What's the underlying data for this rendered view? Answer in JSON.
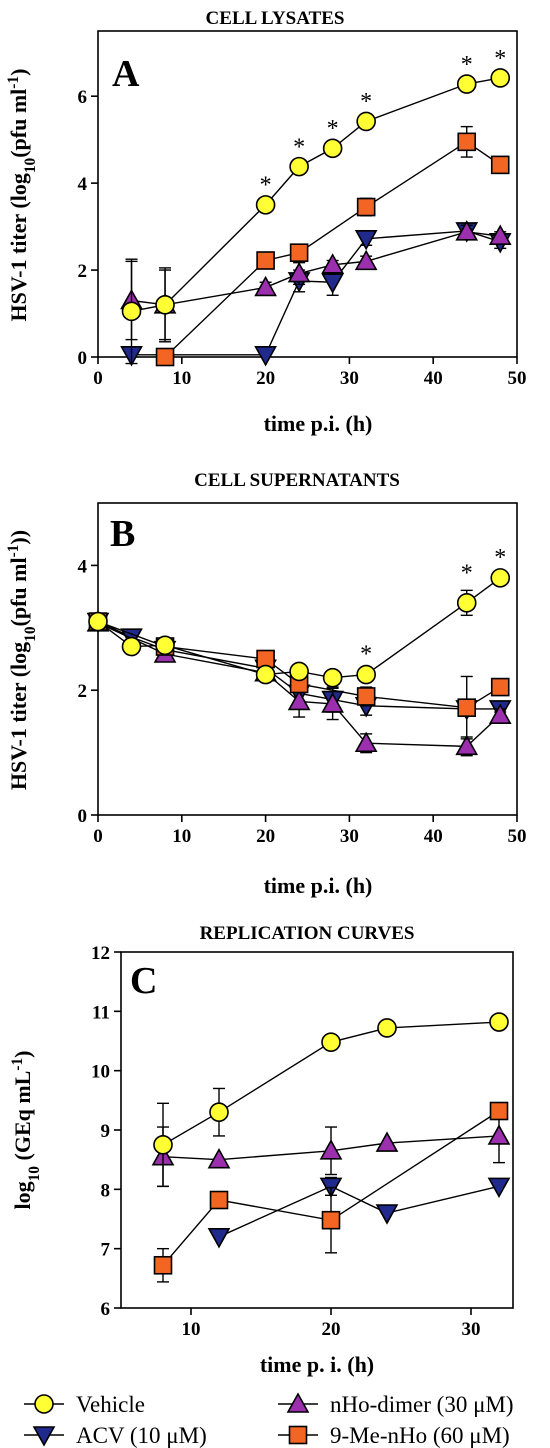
{
  "colors": {
    "vehicle": "#ffff33",
    "acv": "#1f2a8c",
    "dimer": "#9b2fae",
    "methyl": "#f26522"
  },
  "legend": {
    "items": [
      {
        "key": "vehicle",
        "label": "Vehicle",
        "marker": "circle"
      },
      {
        "key": "dimer",
        "label": "nHo-dimer (30 μM)",
        "marker": "triangle-up"
      },
      {
        "key": "acv",
        "label": "ACV (10 μM)",
        "marker": "triangle-down"
      },
      {
        "key": "methyl",
        "label": "9-Me-nHo (60 μM)",
        "marker": "square"
      }
    ]
  },
  "chart_data": [
    {
      "panel": "A",
      "type": "line",
      "title": "CELL LYSATES",
      "xlabel": "time p.i. (h)",
      "ylabel": "HSV-1 titer (log₁₀(pfu ml⁻¹)",
      "xlim": [
        0,
        50
      ],
      "ylim": [
        0,
        7.5
      ],
      "xticks": [
        0,
        10,
        20,
        30,
        40,
        50
      ],
      "yticks": [
        0,
        2,
        4,
        6
      ],
      "asterisks": [
        20,
        24,
        28,
        32,
        44,
        48
      ],
      "series": [
        {
          "key": "acv",
          "name": "ACV (10 μM)",
          "x": [
            4,
            20,
            24,
            28,
            32,
            44,
            48
          ],
          "y": [
            0.05,
            0.05,
            1.75,
            1.72,
            2.72,
            2.9,
            2.65
          ],
          "err": [
            0,
            0,
            0.25,
            0.3,
            0.15,
            0.15,
            0.15
          ]
        },
        {
          "key": "dimer",
          "name": "nHo-dimer (30 μM)",
          "x": [
            4,
            8,
            20,
            24,
            28,
            32,
            44,
            48
          ],
          "y": [
            1.3,
            1.2,
            1.6,
            1.92,
            2.12,
            2.2,
            2.88,
            2.78
          ],
          "err": [
            0.9,
            0.8,
            0.12,
            0.25,
            0.1,
            0.12,
            0.15,
            0.1
          ]
        },
        {
          "key": "methyl",
          "name": "9-Me-nHo (60 μM)",
          "x": [
            8,
            20,
            24,
            32,
            44,
            48
          ],
          "y": [
            0.0,
            2.22,
            2.4,
            3.45,
            4.95,
            4.42
          ],
          "err": [
            0,
            0.05,
            0.08,
            0.2,
            0.35,
            0.08
          ]
        },
        {
          "key": "vehicle",
          "name": "Vehicle",
          "x": [
            4,
            8,
            20,
            24,
            28,
            32,
            44,
            48
          ],
          "y": [
            1.05,
            1.2,
            3.5,
            4.38,
            4.8,
            5.42,
            6.28,
            6.42
          ],
          "err": [
            1.2,
            0.85,
            0.05,
            0.05,
            0.05,
            0.05,
            0.05,
            0.05
          ]
        }
      ]
    },
    {
      "panel": "B",
      "type": "line",
      "title": "CELL SUPERNATANTS",
      "xlabel": "time p.i. (h)",
      "ylabel": "HSV-1 titer (log₁₀(pfu ml⁻¹))",
      "xlim": [
        0,
        50
      ],
      "ylim": [
        0,
        5
      ],
      "xticks": [
        0,
        10,
        20,
        30,
        40,
        50
      ],
      "yticks": [
        0,
        2,
        4
      ],
      "asterisks": [
        32,
        44,
        48
      ],
      "series": [
        {
          "key": "acv",
          "name": "ACV (10 μM)",
          "x": [
            0,
            4,
            8,
            20,
            24,
            28,
            32,
            44,
            48
          ],
          "y": [
            3.1,
            2.85,
            2.65,
            2.35,
            1.95,
            1.85,
            1.75,
            1.7,
            1.7
          ],
          "err": [
            0,
            0.05,
            0.05,
            0.05,
            0.2,
            0.2,
            0.15,
            0.1,
            0.05
          ]
        },
        {
          "key": "dimer",
          "name": "nHo-dimer (30 μM)",
          "x": [
            0,
            8,
            20,
            24,
            28,
            32,
            44,
            48
          ],
          "y": [
            3.08,
            2.58,
            2.28,
            1.82,
            1.78,
            1.15,
            1.1,
            1.6
          ],
          "err": [
            0,
            0.05,
            0.05,
            0.25,
            0.25,
            0.15,
            0.15,
            0.1
          ]
        },
        {
          "key": "methyl",
          "name": "9-Me-nHo (60 μM)",
          "x": [
            0,
            8,
            20,
            24,
            32,
            44,
            48
          ],
          "y": [
            3.1,
            2.7,
            2.5,
            2.1,
            1.9,
            1.72,
            2.05
          ],
          "err": [
            0,
            0.05,
            0.05,
            0.1,
            0.15,
            0.5,
            0.05
          ]
        },
        {
          "key": "vehicle",
          "name": "Vehicle",
          "x": [
            0,
            4,
            8,
            20,
            24,
            28,
            32,
            44,
            48
          ],
          "y": [
            3.1,
            2.7,
            2.72,
            2.25,
            2.3,
            2.2,
            2.25,
            3.4,
            3.8
          ],
          "err": [
            0,
            0.05,
            0.05,
            0.1,
            0.05,
            0.05,
            0.05,
            0.2,
            0.05
          ]
        }
      ]
    },
    {
      "panel": "C",
      "type": "line",
      "title": "REPLICATION CURVES",
      "xlabel": "time p. i. (h)",
      "ylabel": "log₁₀ (GEq mL⁻¹)",
      "xlim": [
        5,
        33
      ],
      "ylim": [
        6,
        12
      ],
      "xticks": [
        10,
        20,
        30
      ],
      "yticks": [
        6,
        7,
        8,
        9,
        10,
        11,
        12
      ],
      "asterisks": [],
      "series": [
        {
          "key": "acv",
          "name": "ACV (10 μM)",
          "x": [
            12,
            20,
            24,
            32
          ],
          "y": [
            7.2,
            8.05,
            7.6,
            8.05
          ],
          "err": [
            0,
            0.15,
            0,
            0
          ]
        },
        {
          "key": "dimer",
          "name": "nHo-dimer (30 μM)",
          "x": [
            8,
            12,
            20,
            24,
            32
          ],
          "y": [
            8.55,
            8.5,
            8.65,
            8.78,
            8.9
          ],
          "err": [
            0.5,
            0,
            0.4,
            0,
            0.45
          ]
        },
        {
          "key": "methyl",
          "name": "9-Me-nHo (60 μM)",
          "x": [
            8,
            12,
            20,
            32
          ],
          "y": [
            6.72,
            7.82,
            7.48,
            9.32
          ],
          "err": [
            0.28,
            0.1,
            0.55,
            0.1
          ]
        },
        {
          "key": "vehicle",
          "name": "Vehicle",
          "x": [
            8,
            12,
            20,
            24,
            32
          ],
          "y": [
            8.75,
            9.3,
            10.48,
            10.72,
            10.82
          ],
          "err": [
            0.7,
            0.4,
            0.05,
            0.05,
            0.05
          ]
        }
      ]
    }
  ]
}
